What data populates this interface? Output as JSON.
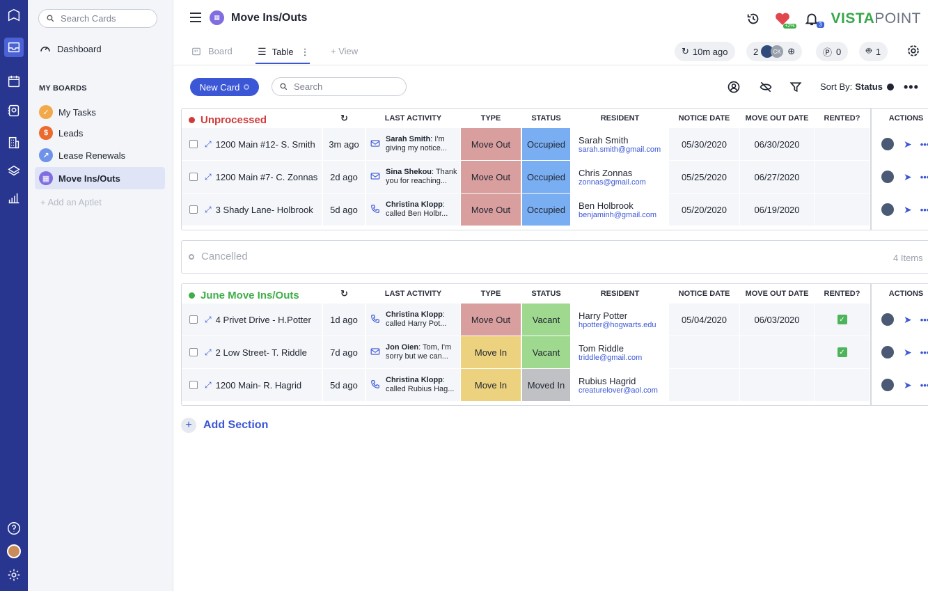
{
  "sidebar": {
    "search_placeholder": "Search Cards",
    "dashboard_label": "Dashboard",
    "boards_heading": "MY BOARDS",
    "boards": [
      {
        "label": "My Tasks",
        "color": "#f2a94a"
      },
      {
        "label": "Leads",
        "color": "#ec6a2d"
      },
      {
        "label": "Lease Renewals",
        "color": "#6e93e8"
      },
      {
        "label": "Move Ins/Outs",
        "color": "#7f6ee0"
      }
    ],
    "add_aptlet": "+ Add an Aptlet"
  },
  "header": {
    "title": "Move Ins/Outs",
    "brand_bold": "VISTA",
    "brand_light": "POINT",
    "heart_badge": "+2%",
    "bell_badge": "3"
  },
  "views": {
    "board": "Board",
    "table": "Table",
    "add_view": "+ View",
    "last_sync": "10m ago",
    "watchers_count": "2",
    "watcher_initials": "CK",
    "unread_count": "0",
    "bot_count": "1"
  },
  "actions": {
    "new_card": "New Card",
    "search_placeholder": "Search",
    "sort_label": "Sort By:",
    "sort_value": "Status"
  },
  "columns": {
    "last_activity": "LAST ACTIVITY",
    "type": "TYPE",
    "status": "STATUS",
    "resident": "RESIDENT",
    "notice_date": "NOTICE DATE",
    "move_out_date": "MOVE OUT DATE",
    "rented": "RENTED?",
    "actions": "ACTIONS"
  },
  "sections": [
    {
      "title": "Unprocessed",
      "color": "#d23a3a",
      "rows": [
        {
          "name": "1200 Main #12- S. Smith",
          "ago": "3m ago",
          "act_icon": "mail",
          "act_who": "Sarah Smith",
          "act_line1": ": I'm",
          "act_line2": "giving my notice...",
          "type": "Move Out",
          "status": "Occupied",
          "res_name": "Sarah Smith",
          "res_email": "sarah.smith@gmail.com",
          "notice": "05/30/2020",
          "moveout": "06/30/2020",
          "rented": false
        },
        {
          "name": "1200 Main #7- C. Zonnas",
          "ago": "2d ago",
          "act_icon": "mail",
          "act_who": "Sina Shekou",
          "act_line1": ": Thank",
          "act_line2": "you for reaching...",
          "type": "Move Out",
          "status": "Occupied",
          "res_name": "Chris Zonnas",
          "res_email": "zonnas@gmail.com",
          "notice": "05/25/2020",
          "moveout": "06/27/2020",
          "rented": false
        },
        {
          "name": "3 Shady Lane- Holbrook",
          "ago": "5d ago",
          "act_icon": "phone",
          "act_who": "Christina Klopp",
          "act_line1": ":",
          "act_line2": "called Ben Holbr...",
          "type": "Move Out",
          "status": "Occupied",
          "res_name": "Ben Holbrook",
          "res_email": "benjaminh@gmail.com",
          "notice": "05/20/2020",
          "moveout": "06/19/2020",
          "rented": false
        }
      ]
    },
    {
      "title": "June Move Ins/Outs",
      "color": "#3fae4a",
      "rows": [
        {
          "name": "4 Privet Drive - H.Potter",
          "ago": "1d ago",
          "act_icon": "phone",
          "act_who": "Christina Klopp",
          "act_line1": ":",
          "act_line2": "called Harry Pot...",
          "type": "Move Out",
          "status": "Vacant",
          "res_name": "Harry Potter",
          "res_email": "hpotter@hogwarts.edu",
          "notice": "05/04/2020",
          "moveout": "06/03/2020",
          "rented": true
        },
        {
          "name": "2 Low Street- T. Riddle",
          "ago": "7d ago",
          "act_icon": "mail",
          "act_who": "Jon Oien",
          "act_line1": ": Tom, I'm",
          "act_line2": "sorry but we can...",
          "type": "Move In",
          "status": "Vacant",
          "res_name": "Tom Riddle",
          "res_email": "triddle@gmail.com",
          "notice": "",
          "moveout": "",
          "rented": true
        },
        {
          "name": "1200 Main- R. Hagrid",
          "ago": "5d ago",
          "act_icon": "phone",
          "act_who": "Christina Klopp",
          "act_line1": ":",
          "act_line2": "called Rubius Hag...",
          "type": "Move In",
          "status": "Moved In",
          "res_name": "Rubius Hagrid",
          "res_email": "creaturelover@aol.com",
          "notice": "",
          "moveout": "",
          "rented": false
        }
      ]
    }
  ],
  "cancelled": {
    "title": "Cancelled",
    "count": "4 Items"
  },
  "add_section": "Add Section",
  "colors": {
    "move_out": "#d99e9e",
    "move_in": "#ecd27f",
    "occupied": "#7aaef2",
    "vacant": "#9fd88f",
    "moved_in": "#bfc1c4",
    "accent": "#3c57d6"
  }
}
